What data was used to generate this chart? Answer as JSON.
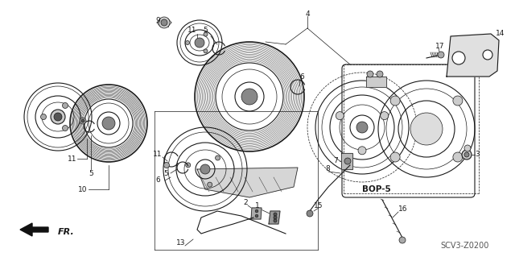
{
  "bg_color": "#ffffff",
  "line_color": "#1a1a1a",
  "fig_width": 6.4,
  "fig_height": 3.19,
  "dpi": 100,
  "watermark": "SCV3-Z0200",
  "direction_label": "FR.",
  "bop_label": "BOP-5"
}
